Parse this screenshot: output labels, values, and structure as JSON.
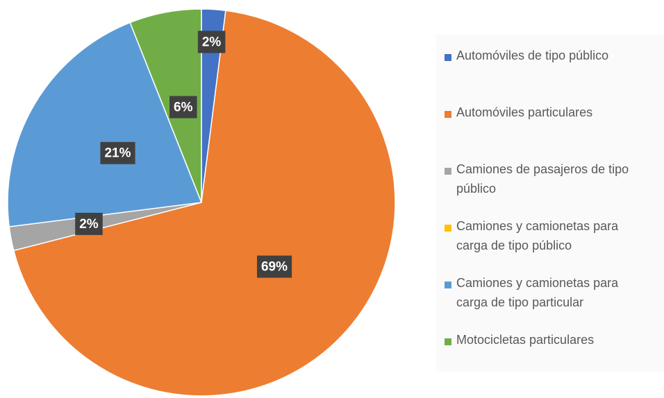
{
  "chart_data": {
    "type": "pie",
    "categories": [
      "Automóviles de tipo público",
      "Automóviles particulares",
      "Camiones de pasajeros de tipo público",
      "Camiones y camionetas para carga de tipo público",
      "Camiones y camionetas para carga de tipo particular",
      "Motocicletas particulares"
    ],
    "values": [
      2,
      69,
      2,
      0,
      21,
      6
    ],
    "value_labels": [
      "2%",
      "69%",
      "2%",
      null,
      "21%",
      "6%"
    ],
    "colors": [
      "#4472c4",
      "#ed7d31",
      "#a5a5a5",
      "#ffc000",
      "#5b9bd5",
      "#70ad47"
    ],
    "legend": "right"
  }
}
